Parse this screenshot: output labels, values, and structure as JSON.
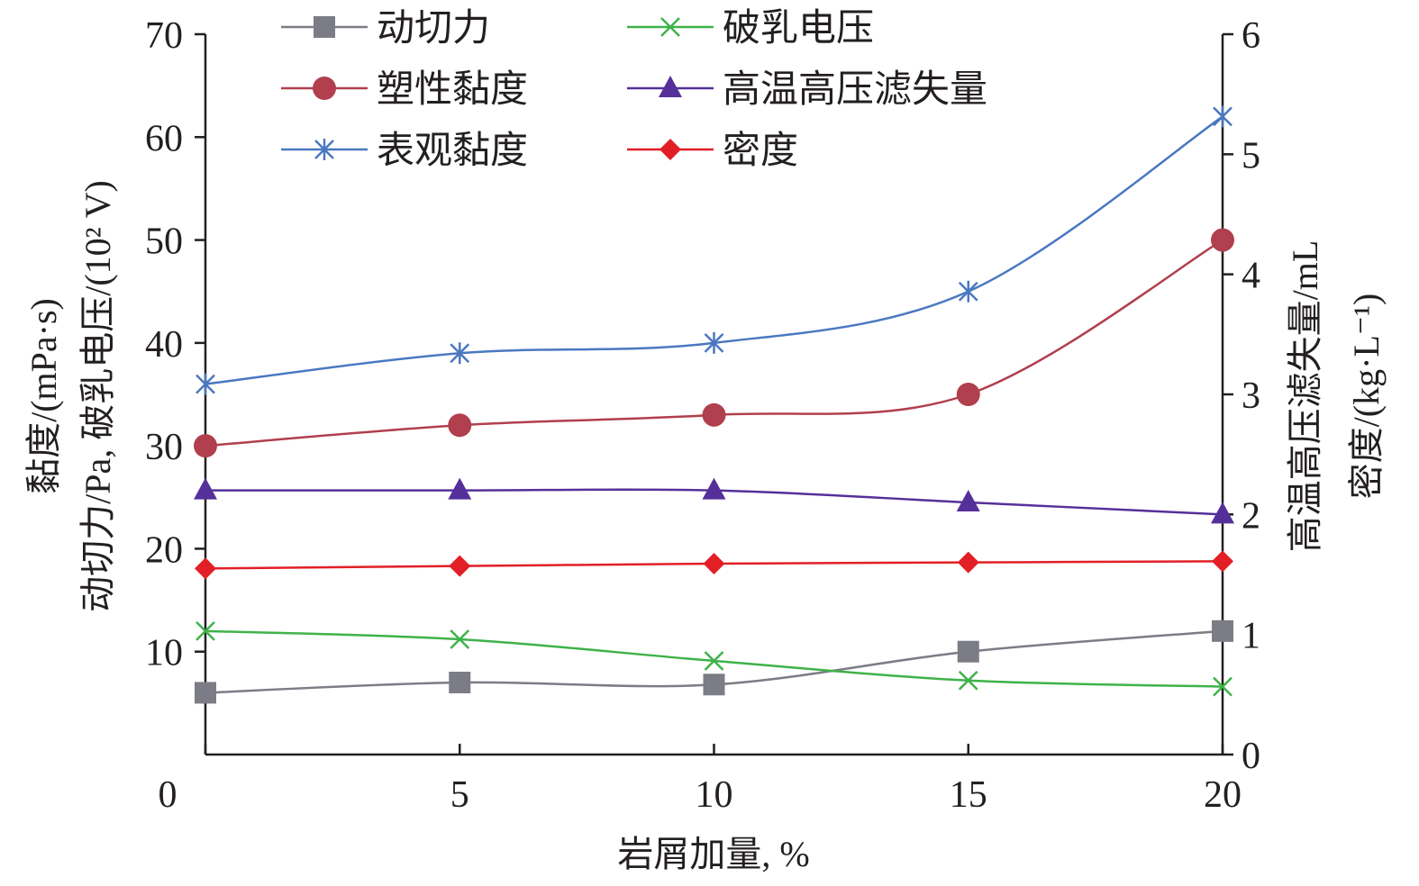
{
  "chart_data": {
    "type": "line",
    "title": "",
    "xlabel": "岩屑加量, %",
    "ylabel_left": [
      "黏度/(mPa·s)",
      "动切力/Pa, 破乳电压/(10² V)"
    ],
    "ylabel_right": [
      "高温高压滤失量/mL",
      "密度/(kg·L⁻¹)"
    ],
    "xlim": [
      0,
      20
    ],
    "ylim_left": [
      0,
      70
    ],
    "ylim_right": [
      0,
      6
    ],
    "x_ticks": [
      "0",
      "5",
      "10",
      "15",
      "20"
    ],
    "y_left_ticks": [
      "10",
      "20",
      "30",
      "40",
      "50",
      "60",
      "70"
    ],
    "y_right_ticks": [
      "0",
      "1",
      "2",
      "3",
      "4",
      "5",
      "6"
    ],
    "x": [
      0,
      5,
      10,
      15,
      20
    ],
    "legend_position": "top",
    "grid": false,
    "series": [
      {
        "name": "动切力",
        "axis": "left",
        "marker": "square",
        "color": "#7b7c85",
        "values": [
          6,
          7,
          6.8,
          10,
          12
        ]
      },
      {
        "name": "破乳电压",
        "axis": "left",
        "marker": "x",
        "color": "#3fb24a",
        "values": [
          12,
          11.2,
          9.1,
          7.2,
          6.6
        ]
      },
      {
        "name": "塑性黏度",
        "axis": "left",
        "marker": "circle",
        "color": "#b13f4d",
        "values": [
          30,
          32,
          33,
          35,
          50
        ]
      },
      {
        "name": "高温高压滤失量",
        "axis": "right",
        "marker": "triangle",
        "color": "#55309a",
        "values": [
          2.2,
          2.2,
          2.2,
          2.1,
          2.0
        ]
      },
      {
        "name": "表观黏度",
        "axis": "left",
        "marker": "asterisk",
        "color": "#4a78c0",
        "values": [
          36,
          39,
          40,
          45,
          62
        ]
      },
      {
        "name": "密度",
        "axis": "right",
        "marker": "diamond",
        "color": "#e21f26",
        "values": [
          1.55,
          1.57,
          1.59,
          1.6,
          1.61
        ]
      }
    ]
  }
}
